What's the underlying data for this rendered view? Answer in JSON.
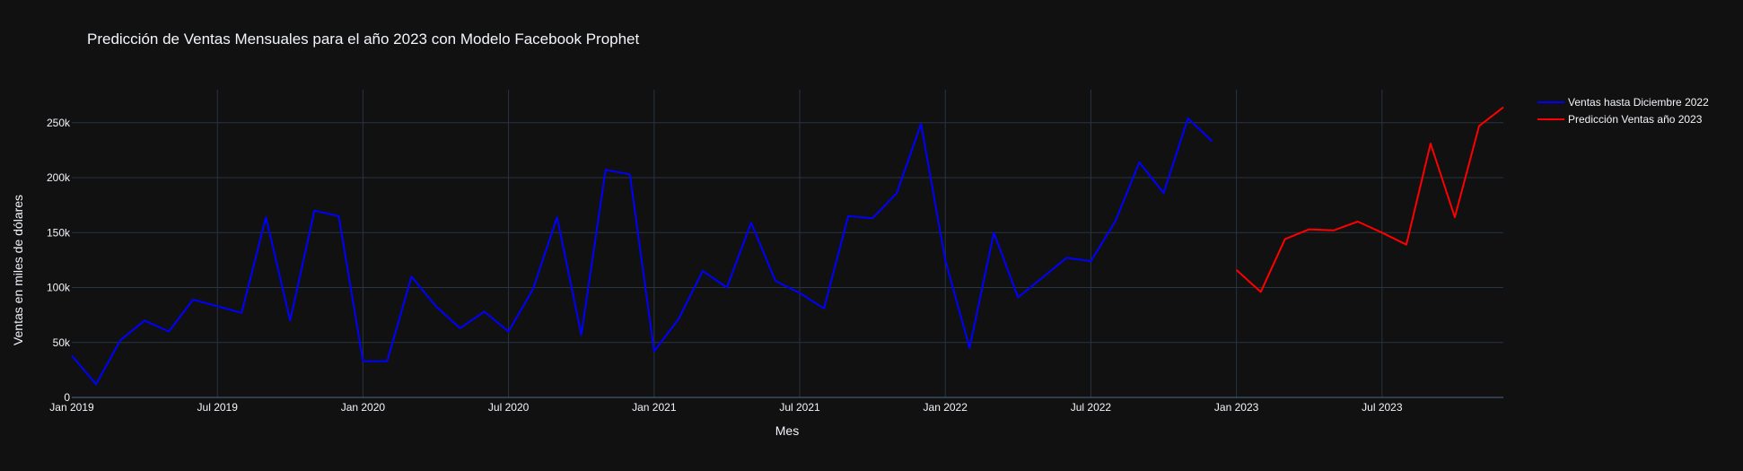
{
  "chart_data": {
    "type": "line",
    "title": "Predicción de Ventas Mensuales para el año 2023 con Modelo Facebook Prophet",
    "xlabel": "Mes",
    "ylabel": "Ventas en miles de dólares",
    "x_tick_labels": [
      "Jan 2019",
      "Jul 2019",
      "Jan 2020",
      "Jul 2020",
      "Jan 2021",
      "Jul 2021",
      "Jan 2022",
      "Jul 2022",
      "Jan 2023",
      "Jul 2023"
    ],
    "x_tick_dates": [
      "2019-01",
      "2019-07",
      "2020-01",
      "2020-07",
      "2021-01",
      "2021-07",
      "2022-01",
      "2022-07",
      "2023-01",
      "2023-07"
    ],
    "xlim": [
      "2019-01",
      "2023-12"
    ],
    "y_tick_values": [
      0,
      50000,
      100000,
      150000,
      200000,
      250000
    ],
    "y_tick_labels": [
      "0",
      "50k",
      "100k",
      "150k",
      "200k",
      "250k"
    ],
    "ylim": [
      0,
      280000
    ],
    "grid": true,
    "legend_position": "top-right",
    "series": [
      {
        "name": "Ventas hasta Diciembre 2022",
        "color": "#0000ff",
        "x": [
          "2019-01",
          "2019-02",
          "2019-03",
          "2019-04",
          "2019-05",
          "2019-06",
          "2019-07",
          "2019-08",
          "2019-09",
          "2019-10",
          "2019-11",
          "2019-12",
          "2020-01",
          "2020-02",
          "2020-03",
          "2020-04",
          "2020-05",
          "2020-06",
          "2020-07",
          "2020-08",
          "2020-09",
          "2020-10",
          "2020-11",
          "2020-12",
          "2021-01",
          "2021-02",
          "2021-03",
          "2021-04",
          "2021-05",
          "2021-06",
          "2021-07",
          "2021-08",
          "2021-09",
          "2021-10",
          "2021-11",
          "2021-12",
          "2022-01",
          "2022-02",
          "2022-03",
          "2022-04",
          "2022-05",
          "2022-06",
          "2022-07",
          "2022-08",
          "2022-09",
          "2022-10",
          "2022-11",
          "2022-12"
        ],
        "values": [
          38000,
          12000,
          52000,
          70000,
          60000,
          89000,
          83000,
          77000,
          164000,
          70000,
          170000,
          165000,
          33000,
          33000,
          110000,
          83000,
          63000,
          78000,
          60000,
          98000,
          164000,
          57000,
          207000,
          203000,
          42000,
          71000,
          115000,
          100000,
          159000,
          106000,
          95000,
          81000,
          165000,
          163000,
          186000,
          249000,
          125000,
          45000,
          150000,
          91000,
          109000,
          127000,
          124000,
          160000,
          214000,
          186000,
          254000,
          233000
        ]
      },
      {
        "name": "Predicción Ventas año 2023",
        "color": "#ff0000",
        "x": [
          "2023-01",
          "2023-02",
          "2023-03",
          "2023-04",
          "2023-05",
          "2023-06",
          "2023-07",
          "2023-08",
          "2023-09",
          "2023-10",
          "2023-11",
          "2023-12"
        ],
        "values": [
          116000,
          96000,
          144000,
          153000,
          152000,
          160000,
          150000,
          139000,
          231000,
          164000,
          247000,
          264000
        ]
      }
    ]
  }
}
